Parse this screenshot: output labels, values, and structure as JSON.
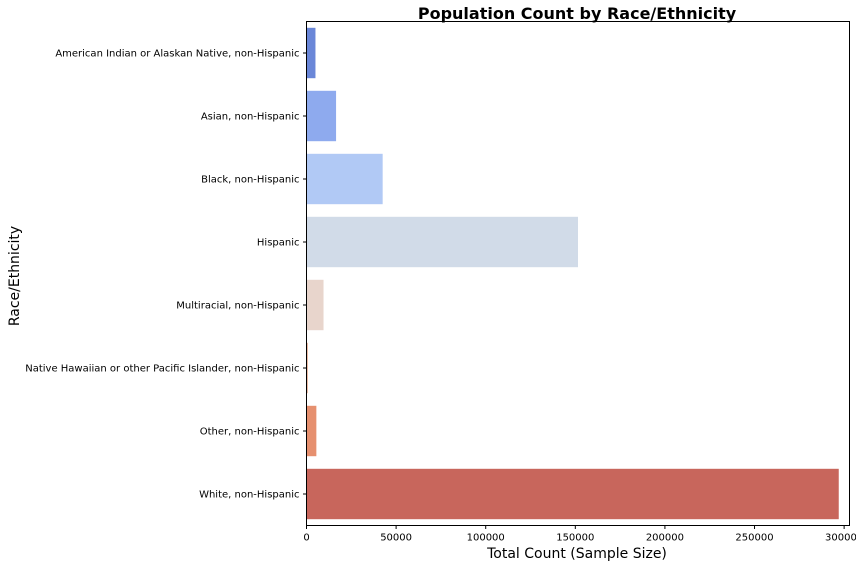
{
  "chart_data": {
    "type": "bar",
    "orientation": "horizontal",
    "title": "Population Count by Race/Ethnicity",
    "xlabel": "Total Count (Sample Size)",
    "ylabel": "Race/Ethnicity",
    "categories": [
      "American Indian or Alaskan Native, non-Hispanic",
      "Asian, non-Hispanic",
      "Black, non-Hispanic",
      "Hispanic",
      "Multiracial, non-Hispanic",
      "Native Hawaiian or other Pacific Islander, non-Hispanic",
      "Other, non-Hispanic",
      "White, non-Hispanic"
    ],
    "values": [
      5000,
      16500,
      42500,
      151500,
      9500,
      800,
      5500,
      297000
    ],
    "colors": [
      "#6a87d8",
      "#8eaaee",
      "#b1c9f5",
      "#d1dbe8",
      "#e8d5cc",
      "#eab79f",
      "#e6906f",
      "#c8665c"
    ],
    "xlim": [
      0,
      303000
    ],
    "xticks": [
      0,
      50000,
      100000,
      150000,
      200000,
      250000,
      300000
    ],
    "xtick_labels": [
      "0",
      "50000",
      "100000",
      "150000",
      "200000",
      "250000",
      "300000"
    ],
    "grid": false
  }
}
